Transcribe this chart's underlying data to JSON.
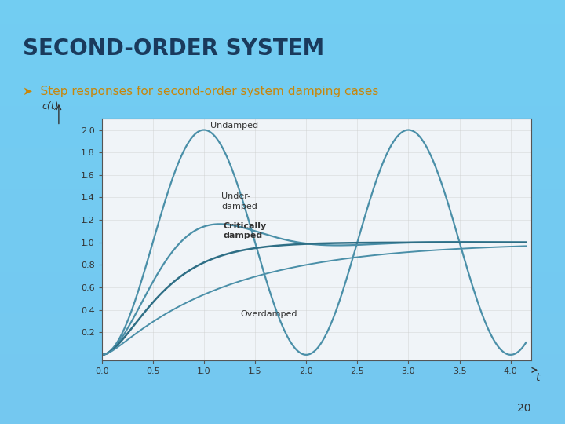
{
  "title": "SECOND-ORDER SYSTEM",
  "subtitle": "Step responses for second-order system damping cases",
  "bg_color_slide": "#7ecef4",
  "title_color": "#1a3a5c",
  "subtitle_color": "#c8860a",
  "plot_bg": "#f0f4f8",
  "xlabel": "t",
  "ylabel": "c(t)",
  "xlim": [
    0,
    4.2
  ],
  "ylim": [
    -0.05,
    2.1
  ],
  "xticks": [
    0,
    0.5,
    1,
    1.5,
    2,
    2.5,
    3,
    3.5,
    4
  ],
  "yticks": [
    0.2,
    0.4,
    0.6,
    0.8,
    1.0,
    1.2,
    1.4,
    1.6,
    1.8,
    2.0
  ],
  "line_color": "#4a8fa8",
  "line_color_critical": "#2e6e85",
  "zeta_undamped": 0.0,
  "zeta_underdamped": 0.5,
  "zeta_critical": 1.0,
  "zeta_overdamped": 2.0,
  "wn": 3.14159265,
  "page_number": "20"
}
